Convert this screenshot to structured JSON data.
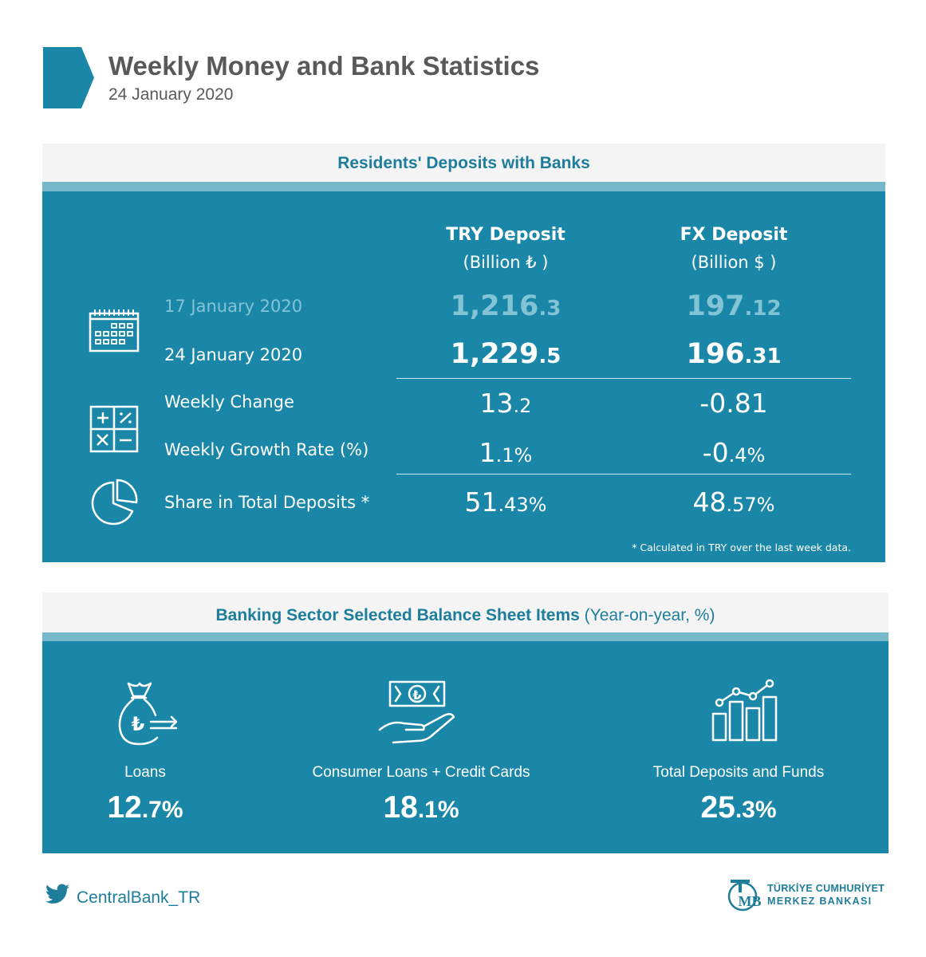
{
  "header": {
    "title": "Weekly Money and Bank Statistics",
    "date": "24 January 2020"
  },
  "deposits": {
    "title": "Residents' Deposits with Banks",
    "columns": [
      {
        "name": "TRY Deposit",
        "unit": "(Billion ₺ )"
      },
      {
        "name": "FX Deposit",
        "unit": "(Billion $ )"
      }
    ],
    "rows": {
      "prev_week": {
        "label": "17 January 2020",
        "try_int": "1,216",
        "try_dec": ".3",
        "fx_int": "197",
        "fx_dec": ".12"
      },
      "current_week": {
        "label": "24 January 2020",
        "try_int": "1,229",
        "try_dec": ".5",
        "fx_int": "196",
        "fx_dec": ".31"
      },
      "weekly_change": {
        "label": "Weekly Change",
        "try_int": "13",
        "try_dec": ".2",
        "fx_int": "-0.81",
        "fx_dec": ""
      },
      "growth_rate": {
        "label": "Weekly Growth Rate (%)",
        "try_int": "1",
        "try_dec": ".1%",
        "fx_int": "-0",
        "fx_dec": ".4%"
      },
      "share": {
        "label": "Share in Total Deposits *",
        "try_int": "51",
        "try_dec": ".43%",
        "fx_int": "48",
        "fx_dec": ".57%"
      }
    },
    "footnote": "* Calculated in TRY over the last week data."
  },
  "balance": {
    "title_bold": "Banking Sector Selected Balance Sheet Items",
    "title_suffix": " (Year-on-year, %)",
    "items": [
      {
        "label": "Loans",
        "int": "12",
        "dec": ".7%",
        "icon": "money-bag-icon"
      },
      {
        "label": "Consumer  Loans + Credit Cards",
        "int": "18",
        "dec": ".1%",
        "icon": "hand-banknote-icon"
      },
      {
        "label": "Total Deposits and Funds",
        "int": "25",
        "dec": ".3%",
        "icon": "growth-chart-icon"
      }
    ]
  },
  "footer": {
    "twitter_handle": "CentralBank_TR",
    "logo_line1": "TÜRKİYE CUMHURİYET",
    "logo_line2": "MERKEZ BANKASI",
    "logo_monogram": "TCMB"
  },
  "colors": {
    "accent": "#1b87a8",
    "accent_light": "#76b8c9",
    "title_text": "#1d7d9b",
    "faded_text": "#82c4d6"
  }
}
